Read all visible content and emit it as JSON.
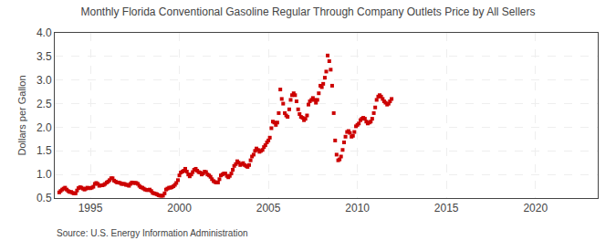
{
  "chart_data": {
    "type": "scatter",
    "title": "Monthly Florida Conventional Gasoline Regular Through Company Outlets Price by All Sellers",
    "ylabel": "Dollars per Gallon",
    "annotations": [
      "Source: U.S. Energy Information Administration"
    ],
    "color": "#cc0000",
    "marker": "square",
    "grid": true,
    "xlim": [
      1993.0,
      2023.5
    ],
    "xticks": [
      1995,
      2000,
      2005,
      2010,
      2015,
      2020
    ],
    "ylim": [
      0.5,
      4.0
    ],
    "yticks": [
      0.5,
      {
        "value": 1.0,
        "label": "1.0"
      },
      1.5,
      {
        "value": 2.0,
        "label": "2.0"
      },
      2.5,
      {
        "value": 3.0,
        "label": "3.0"
      },
      3.5,
      {
        "value": 4.0,
        "label": "4.0"
      }
    ],
    "x": [
      1993.25,
      1993.33,
      1993.42,
      1993.5,
      1993.58,
      1993.67,
      1993.75,
      1993.83,
      1993.92,
      1994.0,
      1994.08,
      1994.17,
      1994.25,
      1994.33,
      1994.42,
      1994.5,
      1994.58,
      1994.67,
      1994.75,
      1994.83,
      1994.92,
      1995.0,
      1995.08,
      1995.17,
      1995.25,
      1995.33,
      1995.42,
      1995.5,
      1995.58,
      1995.67,
      1995.75,
      1995.83,
      1995.92,
      1996.0,
      1996.08,
      1996.17,
      1996.25,
      1996.33,
      1996.42,
      1996.5,
      1996.58,
      1996.67,
      1996.75,
      1996.83,
      1996.92,
      1997.0,
      1997.08,
      1997.17,
      1997.25,
      1997.33,
      1997.42,
      1997.5,
      1997.58,
      1997.67,
      1997.75,
      1997.83,
      1997.92,
      1998.0,
      1998.08,
      1998.17,
      1998.25,
      1998.33,
      1998.42,
      1998.5,
      1998.58,
      1998.67,
      1998.75,
      1998.83,
      1998.92,
      1999.0,
      1999.08,
      1999.17,
      1999.25,
      1999.33,
      1999.42,
      1999.5,
      1999.58,
      1999.67,
      1999.75,
      1999.83,
      1999.92,
      2000.0,
      2000.08,
      2000.17,
      2000.25,
      2000.33,
      2000.42,
      2000.5,
      2000.58,
      2000.67,
      2000.75,
      2000.83,
      2000.92,
      2001.0,
      2001.08,
      2001.17,
      2001.25,
      2001.33,
      2001.42,
      2001.5,
      2001.58,
      2001.67,
      2001.75,
      2001.83,
      2001.92,
      2002.0,
      2002.08,
      2002.17,
      2002.25,
      2002.33,
      2002.42,
      2002.5,
      2002.58,
      2002.67,
      2002.75,
      2002.83,
      2002.92,
      2003.0,
      2003.08,
      2003.17,
      2003.25,
      2003.33,
      2003.42,
      2003.5,
      2003.58,
      2003.67,
      2003.75,
      2003.83,
      2003.92,
      2004.0,
      2004.08,
      2004.17,
      2004.25,
      2004.33,
      2004.42,
      2004.5,
      2004.58,
      2004.67,
      2004.75,
      2004.83,
      2004.92,
      2005.0,
      2005.08,
      2005.17,
      2005.25,
      2005.33,
      2005.42,
      2005.5,
      2005.58,
      2005.67,
      2005.75,
      2005.83,
      2005.92,
      2006.0,
      2006.08,
      2006.17,
      2006.25,
      2006.33,
      2006.42,
      2006.5,
      2006.58,
      2006.67,
      2006.75,
      2006.83,
      2006.92,
      2007.0,
      2007.08,
      2007.17,
      2007.25,
      2007.33,
      2007.42,
      2007.5,
      2007.58,
      2007.67,
      2007.75,
      2007.83,
      2007.92,
      2008.0,
      2008.08,
      2008.17,
      2008.25,
      2008.33,
      2008.42,
      2008.5,
      2008.58,
      2008.67,
      2008.75,
      2008.83,
      2008.92,
      2009.0,
      2009.08,
      2009.17,
      2009.25,
      2009.33,
      2009.42,
      2009.5,
      2009.58,
      2009.67,
      2009.75,
      2009.83,
      2009.92,
      2010.0,
      2010.08,
      2010.17,
      2010.25,
      2010.33,
      2010.42,
      2010.5,
      2010.58,
      2010.67,
      2010.75,
      2010.83,
      2010.92,
      2011.0,
      2011.08,
      2011.17,
      2011.25,
      2011.33,
      2011.42,
      2011.5,
      2011.58,
      2011.67,
      2011.75,
      2011.83,
      2011.92
    ],
    "values": [
      0.62,
      0.65,
      0.68,
      0.7,
      0.72,
      0.68,
      0.65,
      0.63,
      0.63,
      0.61,
      0.6,
      0.6,
      0.66,
      0.71,
      0.73,
      0.72,
      0.7,
      0.68,
      0.7,
      0.72,
      0.71,
      0.71,
      0.72,
      0.74,
      0.8,
      0.82,
      0.8,
      0.76,
      0.77,
      0.77,
      0.78,
      0.8,
      0.83,
      0.85,
      0.88,
      0.92,
      0.92,
      0.87,
      0.85,
      0.83,
      0.83,
      0.82,
      0.8,
      0.8,
      0.8,
      0.78,
      0.78,
      0.76,
      0.8,
      0.83,
      0.82,
      0.82,
      0.82,
      0.8,
      0.76,
      0.73,
      0.72,
      0.7,
      0.68,
      0.67,
      0.67,
      0.68,
      0.65,
      0.61,
      0.6,
      0.59,
      0.58,
      0.56,
      0.55,
      0.55,
      0.55,
      0.6,
      0.68,
      0.7,
      0.72,
      0.72,
      0.73,
      0.75,
      0.78,
      0.82,
      0.88,
      0.98,
      1.04,
      1.06,
      1.08,
      1.12,
      1.06,
      1.0,
      0.96,
      1.0,
      1.05,
      1.1,
      1.12,
      1.08,
      1.05,
      1.04,
      1.0,
      1.02,
      1.06,
      1.05,
      1.0,
      0.98,
      0.95,
      0.9,
      0.86,
      0.84,
      0.83,
      0.83,
      0.9,
      0.98,
      1.0,
      1.02,
      1.02,
      0.97,
      0.94,
      0.97,
      1.02,
      1.1,
      1.18,
      1.22,
      1.28,
      1.25,
      1.2,
      1.22,
      1.24,
      1.2,
      1.18,
      1.16,
      1.2,
      1.3,
      1.38,
      1.42,
      1.5,
      1.55,
      1.52,
      1.48,
      1.5,
      1.52,
      1.58,
      1.62,
      1.68,
      1.72,
      1.78,
      1.98,
      2.12,
      2.1,
      2.05,
      2.1,
      2.3,
      2.8,
      2.6,
      2.5,
      2.3,
      2.25,
      2.22,
      2.38,
      2.58,
      2.68,
      2.72,
      2.68,
      2.55,
      2.38,
      2.28,
      2.22,
      2.2,
      2.15,
      2.18,
      2.25,
      2.48,
      2.55,
      2.58,
      2.62,
      2.58,
      2.52,
      2.58,
      2.72,
      2.88,
      2.85,
      2.92,
      3.05,
      3.18,
      3.52,
      3.4,
      3.22,
      2.88,
      2.3,
      1.72,
      1.42,
      1.3,
      1.32,
      1.38,
      1.52,
      1.68,
      1.8,
      1.9,
      1.92,
      1.88,
      1.8,
      1.82,
      1.9,
      2.02,
      2.05,
      2.08,
      2.15,
      2.18,
      2.2,
      2.18,
      2.12,
      2.08,
      2.1,
      2.12,
      2.18,
      2.3,
      2.42,
      2.58,
      2.65,
      2.68,
      2.65,
      2.6,
      2.55,
      2.52,
      2.48,
      2.5,
      2.55,
      2.6
    ]
  }
}
